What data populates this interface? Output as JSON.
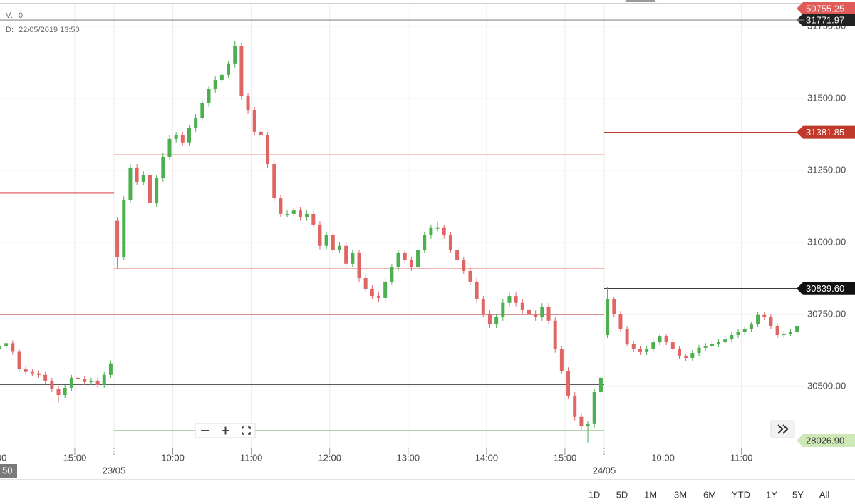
{
  "info": {
    "v_label": "V:",
    "v_value": 0,
    "d_label": "D:",
    "d_value": "22/05/2019 13:50"
  },
  "corner_label": "50",
  "range_buttons": [
    "1D",
    "5D",
    "1M",
    "3M",
    "6M",
    "YTD",
    "1Y",
    "5Y",
    "All"
  ],
  "chart_data": {
    "type": "candlestick",
    "categories": [
      "00",
      null,
      null,
      null,
      null,
      null,
      null,
      null,
      null,
      null,
      null,
      null,
      "15:00",
      null,
      null,
      null,
      null,
      null,
      "23/05",
      null,
      null,
      null,
      null,
      null,
      null,
      null,
      null,
      "10:00",
      null,
      null,
      null,
      null,
      null,
      null,
      null,
      null,
      null,
      null,
      null,
      "11:00",
      null,
      null,
      null,
      null,
      null,
      null,
      null,
      null,
      null,
      null,
      null,
      "12:00",
      null,
      null,
      null,
      null,
      null,
      null,
      null,
      null,
      null,
      null,
      null,
      "13:00",
      null,
      null,
      null,
      null,
      null,
      null,
      null,
      null,
      null,
      null,
      null,
      "14:00",
      null,
      null,
      null,
      null,
      null,
      null,
      null,
      null,
      null,
      null,
      null,
      "15:00",
      null,
      null,
      null,
      null,
      null,
      "24/05",
      null,
      null,
      null,
      null,
      null,
      null,
      null,
      null,
      "10:00",
      null,
      null,
      null,
      null,
      null,
      null,
      null,
      null,
      null,
      null,
      null,
      "11:00",
      null,
      null,
      null,
      null,
      null,
      null,
      null,
      null
    ],
    "open": [
      30630,
      30640,
      30650,
      30620,
      30560,
      30550,
      30545,
      30540,
      30520,
      30490,
      30470,
      30495,
      30530,
      30525,
      30515,
      30520,
      30505,
      30540,
      31075,
      30950,
      31148,
      31260,
      31210,
      31235,
      31136,
      31223,
      31297,
      31359,
      31371,
      31347,
      31396,
      31433,
      31483,
      31532,
      31564,
      31582,
      31619,
      31681,
      31507,
      31458,
      31384,
      31371,
      31272,
      31153,
      31099,
      31099,
      31111,
      31087,
      31099,
      31062,
      30988,
      31025,
      30975,
      30988,
      30926,
      30963,
      30876,
      30839,
      30814,
      30807,
      30864,
      30913,
      30963,
      30938,
      30913,
      30975,
      31025,
      31050,
      31050,
      31025,
      30975,
      30938,
      30901,
      30864,
      30802,
      30752,
      30715,
      30740,
      30790,
      30814,
      30790,
      30765,
      30752,
      30740,
      30777,
      30728,
      30629,
      30554,
      30468,
      30394,
      30361,
      30369,
      30480,
      30678,
      30802,
      30752,
      30698,
      30648,
      30629,
      30619,
      30629,
      30653,
      30673,
      30653,
      30629,
      30604,
      30599,
      30616,
      30634,
      30641,
      30646,
      30653,
      30663,
      30678,
      30688,
      30698,
      30715,
      30748,
      30740,
      30708,
      30678,
      30683,
      30688
    ],
    "high": [
      30650,
      30660,
      30660,
      30630,
      30570,
      30560,
      30555,
      30550,
      30530,
      30500,
      30505,
      30540,
      30540,
      30535,
      30530,
      30530,
      30550,
      30590,
      31087,
      31160,
      31272,
      31272,
      31247,
      31247,
      31235,
      31309,
      31371,
      31383,
      31383,
      31408,
      31445,
      31495,
      31544,
      31576,
      31594,
      31631,
      31700,
      31693,
      31519,
      31470,
      31396,
      31383,
      31284,
      31165,
      31111,
      31123,
      31123,
      31111,
      31111,
      31074,
      31037,
      31037,
      31000,
      31000,
      30975,
      30975,
      30888,
      30851,
      30826,
      30876,
      30925,
      30975,
      30975,
      30950,
      30987,
      31037,
      31062,
      31070,
      31062,
      31037,
      30987,
      30950,
      30913,
      30876,
      30814,
      30764,
      30752,
      30802,
      30826,
      30826,
      30802,
      30777,
      30764,
      30789,
      30789,
      30740,
      30641,
      30566,
      30480,
      30406,
      30381,
      30492,
      30542,
      30845,
      30812,
      30762,
      30708,
      30658,
      30639,
      30639,
      30663,
      30683,
      30683,
      30663,
      30639,
      30614,
      30626,
      30644,
      30651,
      30656,
      30663,
      30673,
      30688,
      30698,
      30708,
      30725,
      30758,
      30758,
      30750,
      30718,
      30693,
      30698,
      30718
    ],
    "low": [
      30620,
      30630,
      30610,
      30550,
      30540,
      30535,
      30530,
      30510,
      30480,
      30445,
      30460,
      30485,
      30515,
      30505,
      30505,
      30495,
      30495,
      30530,
      30910,
      30938,
      31136,
      31198,
      31198,
      31124,
      31124,
      31211,
      31285,
      31347,
      31335,
      31335,
      31384,
      31421,
      31471,
      31520,
      31552,
      31570,
      31607,
      31495,
      31446,
      31372,
      31359,
      31260,
      31141,
      31087,
      31087,
      31087,
      31075,
      31075,
      31050,
      30976,
      30976,
      30963,
      30963,
      30914,
      30914,
      30864,
      30827,
      30802,
      30795,
      30795,
      30852,
      30901,
      30926,
      30901,
      30901,
      30963,
      31013,
      31038,
      31013,
      30963,
      30926,
      30889,
      30852,
      30790,
      30740,
      30703,
      30703,
      30728,
      30778,
      30778,
      30753,
      30740,
      30728,
      30728,
      30716,
      30617,
      30542,
      30456,
      30382,
      30349,
      30305,
      30357,
      30468,
      30668,
      30742,
      30688,
      30638,
      30619,
      30609,
      30609,
      30619,
      30643,
      30643,
      30619,
      30594,
      30589,
      30589,
      30606,
      30624,
      30631,
      30636,
      30643,
      30653,
      30668,
      30678,
      30688,
      30705,
      30730,
      30698,
      30668,
      30668,
      30673,
      30678
    ],
    "close": [
      30640,
      30650,
      30620,
      30560,
      30550,
      30545,
      30540,
      30520,
      30490,
      30470,
      30495,
      30530,
      30525,
      30515,
      30520,
      30505,
      30540,
      30580,
      30950,
      31148,
      31260,
      31210,
      31235,
      31136,
      31223,
      31297,
      31359,
      31371,
      31347,
      31396,
      31433,
      31483,
      31532,
      31564,
      31582,
      31619,
      31681,
      31507,
      31458,
      31384,
      31371,
      31272,
      31153,
      31099,
      31099,
      31111,
      31087,
      31099,
      31062,
      30988,
      31025,
      30975,
      30988,
      30926,
      30963,
      30876,
      30839,
      30814,
      30807,
      30864,
      30913,
      30963,
      30938,
      30913,
      30975,
      31025,
      31050,
      31050,
      31025,
      30975,
      30938,
      30901,
      30864,
      30802,
      30752,
      30715,
      30740,
      30790,
      30814,
      30790,
      30765,
      30752,
      30740,
      30777,
      30728,
      30629,
      30554,
      30468,
      30394,
      30361,
      30369,
      30480,
      30530,
      30802,
      30752,
      30698,
      30648,
      30629,
      30619,
      30629,
      30653,
      30673,
      30653,
      30629,
      30604,
      30599,
      30616,
      30634,
      30641,
      30646,
      30653,
      30663,
      30678,
      30688,
      30698,
      30715,
      30748,
      30740,
      30708,
      30678,
      30683,
      30688,
      30708
    ],
    "up_color": "#4caf50",
    "down_color": "#e06666",
    "ylim": [
      30287,
      31829
    ],
    "yticks": [
      {
        "value": 30500,
        "label": "30500.00"
      },
      {
        "value": 30750,
        "label": "30750.00"
      },
      {
        "value": 31000,
        "label": "31000.00"
      },
      {
        "value": 31250,
        "label": "31250.00"
      },
      {
        "value": 31500,
        "label": "31500.00"
      },
      {
        "value": 31750,
        "label": "31750.00"
      }
    ],
    "grid": true,
    "levels": [
      [
        {
          "value": 31171,
          "color": "#e06666"
        },
        {
          "value": 30750,
          "color": "#c0504d"
        },
        {
          "value": 30507,
          "color": "#222222"
        }
      ],
      [
        {
          "value": 31305,
          "color": "#f4c7c3"
        },
        {
          "value": 30908,
          "color": "#e06666"
        },
        {
          "value": 30750,
          "color": "#c0504d"
        },
        {
          "value": 30507,
          "color": "#222222"
        },
        {
          "value": 30346,
          "color": "#6aa84f"
        }
      ],
      [
        {
          "value": 31381.85,
          "color": "#c0392b"
        },
        {
          "value": 30839.6,
          "color": "#222222"
        }
      ]
    ],
    "price_tags": [
      {
        "value": 50755.25,
        "color": "#e05a5a",
        "text_color": "#ffffff"
      },
      {
        "value": 31771.97,
        "color": "#222222",
        "text_color": "#ffffff",
        "line": true
      },
      {
        "value": 31381.85,
        "color": "#c0392b",
        "text_color": "#ffffff"
      },
      {
        "value": 30839.6,
        "label": "30839.60",
        "color": "#111111",
        "text_color": "#ffffff"
      },
      {
        "value": 28026.9,
        "label": "28026.90",
        "color": "#cfe8b8",
        "text_color": "#333333"
      }
    ]
  }
}
